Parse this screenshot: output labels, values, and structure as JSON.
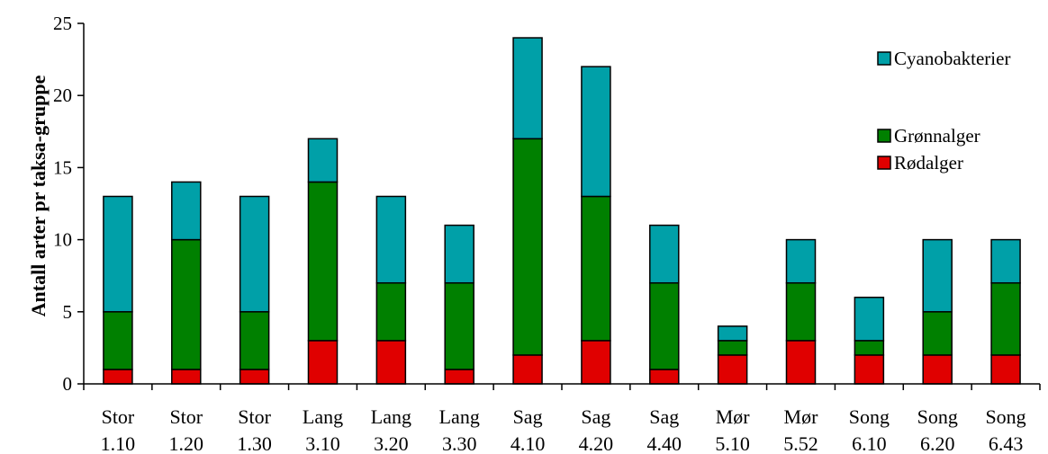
{
  "chart_data": {
    "type": "bar",
    "stacked": true,
    "title": "",
    "xlabel": "",
    "ylabel": "Antall arter pr taksa-gruppe",
    "ylim": [
      0,
      25
    ],
    "yticks": [
      0,
      5,
      10,
      15,
      20,
      25
    ],
    "grid": false,
    "legend_position": "top-right",
    "categories": [
      [
        "Stor",
        "1.10"
      ],
      [
        "Stor",
        "1.20"
      ],
      [
        "Stor",
        "1.30"
      ],
      [
        "Lang",
        "3.10"
      ],
      [
        "Lang",
        "3.20"
      ],
      [
        "Lang",
        "3.30"
      ],
      [
        "Sag",
        "4.10"
      ],
      [
        "Sag",
        "4.20"
      ],
      [
        "Sag",
        "4.40"
      ],
      [
        "Mør",
        "5.10"
      ],
      [
        "Mør",
        "5.52"
      ],
      [
        "Song",
        "6.10"
      ],
      [
        "Song",
        "6.20"
      ],
      [
        "Song",
        "6.43"
      ]
    ],
    "series": [
      {
        "name": "Rødalger",
        "color": "#e00000",
        "values": [
          1,
          1,
          1,
          3,
          3,
          1,
          2,
          3,
          1,
          2,
          3,
          2,
          2,
          2
        ]
      },
      {
        "name": "Grønnalger",
        "color": "#008000",
        "values": [
          4,
          9,
          4,
          11,
          4,
          6,
          15,
          10,
          6,
          1,
          4,
          1,
          3,
          5
        ]
      },
      {
        "name": "Cyanobakterier",
        "color": "#00a0a8",
        "values": [
          8,
          4,
          8,
          3,
          6,
          4,
          7,
          9,
          4,
          1,
          3,
          3,
          5,
          3
        ]
      }
    ],
    "legend_order": [
      "Cyanobakterier",
      "Grønnalger",
      "Rødalger"
    ]
  }
}
